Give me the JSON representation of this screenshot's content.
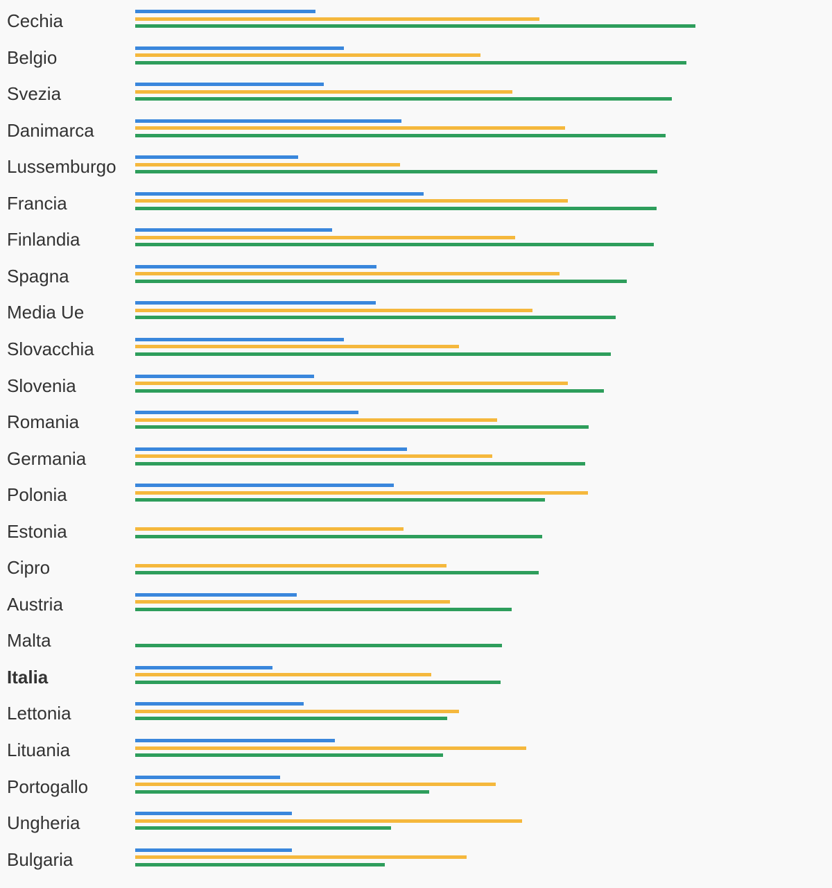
{
  "chart_data": {
    "type": "bar",
    "orientation": "horizontal",
    "categories": [
      "Cechia",
      "Belgio",
      "Svezia",
      "Danimarca",
      "Lussemburgo",
      "Francia",
      "Finlandia",
      "Spagna",
      "Media Ue",
      "Slovacchia",
      "Slovenia",
      "Romania",
      "Germania",
      "Polonia",
      "Estonia",
      "Cipro",
      "Austria",
      "Malta",
      "Italia",
      "Lettonia",
      "Lituania",
      "Portogallo",
      "Ungheria",
      "Bulgaria"
    ],
    "highlight": "Italia",
    "xlim": [
      0,
      100
    ],
    "grid": false,
    "legend": "none",
    "series": [
      {
        "color": "#3a87dc",
        "values": [
          32.1,
          37.2,
          33.6,
          47.4,
          29.0,
          51.4,
          35.1,
          43.0,
          42.8,
          37.1,
          31.8,
          39.8,
          48.4,
          46.1,
          null,
          null,
          28.8,
          null,
          24.5,
          30.0,
          35.6,
          25.8,
          27.9,
          27.9
        ]
      },
      {
        "color": "#f5b83d",
        "values": [
          72.0,
          61.5,
          67.2,
          76.6,
          47.2,
          77.0,
          67.7,
          75.6,
          70.8,
          57.6,
          77.0,
          64.4,
          63.6,
          80.6,
          47.8,
          55.4,
          56.0,
          null,
          52.7,
          57.7,
          69.6,
          64.2,
          68.9,
          59.0
        ]
      },
      {
        "color": "#2e9e5c",
        "values": [
          99.8,
          98.2,
          95.6,
          94.4,
          93.0,
          92.8,
          92.3,
          87.5,
          85.6,
          84.7,
          83.4,
          80.8,
          80.1,
          73.0,
          72.5,
          71.8,
          67.0,
          65.3,
          65.0,
          55.5,
          54.8,
          52.4,
          45.5,
          44.5
        ]
      }
    ]
  }
}
